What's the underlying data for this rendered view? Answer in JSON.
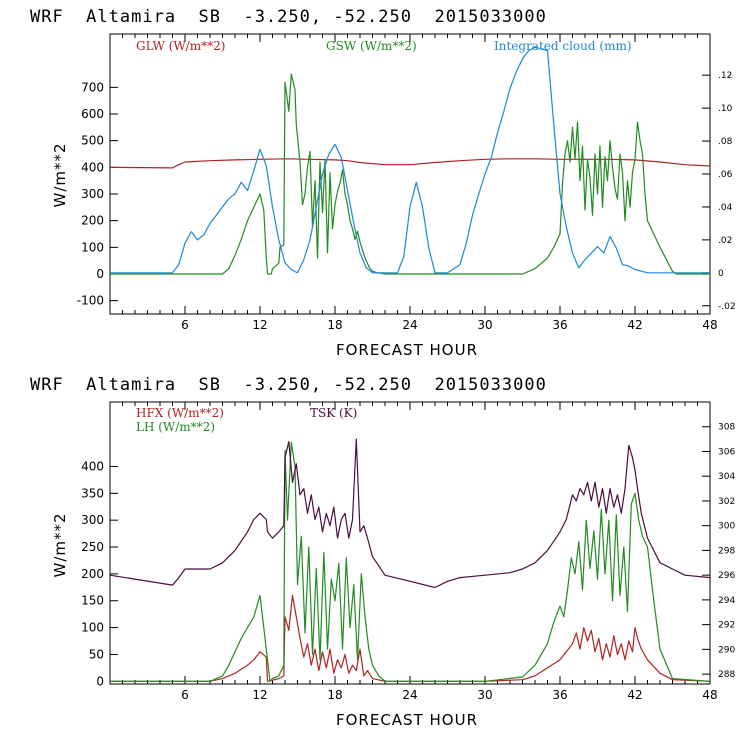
{
  "chart_data": [
    {
      "type": "line",
      "title": "WRF  Altamira  SB  -3.250, -52.250  2015033000",
      "xlabel": "FORECAST HOUR",
      "ylabel": "W/m**2",
      "xlim": [
        0,
        48
      ],
      "ylim": [
        -150,
        900
      ],
      "x_ticks": [
        6,
        12,
        18,
        24,
        30,
        36,
        42,
        48
      ],
      "y_ticks": [
        -100,
        0,
        100,
        200,
        300,
        400,
        500,
        600,
        700
      ],
      "y2lim": [
        -0.025,
        0.145
      ],
      "y2_ticks": [
        {
          "value": -0.02,
          "label": "-.02"
        },
        {
          "value": 0,
          "label": "0"
        },
        {
          "value": 0.02,
          "label": ".02"
        },
        {
          "value": 0.04,
          "label": ".04"
        },
        {
          "value": 0.06,
          "label": ".06"
        },
        {
          "value": 0.08,
          "label": ".08"
        },
        {
          "value": 0.1,
          "label": ".10"
        },
        {
          "value": 0.12,
          "label": ".12"
        }
      ],
      "series": [
        {
          "name": "GLW (W/m**2)",
          "axis": "left",
          "color": "#b22222",
          "x": [
            0,
            5,
            5.5,
            6,
            8,
            10,
            12,
            14,
            16,
            18,
            19,
            20,
            22,
            24,
            26,
            28,
            30,
            32,
            34,
            36,
            38,
            40,
            42,
            44,
            46,
            48
          ],
          "y": [
            400,
            398,
            410,
            420,
            425,
            428,
            430,
            432,
            430,
            428,
            425,
            418,
            410,
            410,
            418,
            425,
            430,
            432,
            432,
            430,
            430,
            430,
            428,
            420,
            410,
            405
          ]
        },
        {
          "name": "GSW (W/m**2)",
          "axis": "left",
          "color": "#228b22",
          "x": [
            0,
            9,
            9.5,
            10,
            10.5,
            11,
            11.5,
            12,
            12.3,
            12.5,
            12.6,
            12.9,
            13,
            13.5,
            13.6,
            13.9,
            14,
            14.3,
            14.5,
            14.8,
            14.9,
            15.2,
            15.4,
            15.6,
            15.8,
            16.0,
            16.2,
            16.4,
            16.6,
            16.8,
            17.0,
            17.2,
            17.4,
            17.6,
            17.8,
            18.0,
            18.2,
            18.4,
            18.6,
            18.8,
            19.0,
            19.2,
            19.4,
            19.6,
            19.8,
            20.0,
            20.2,
            20.4,
            20.8,
            21.0,
            21.4,
            22,
            33,
            34,
            35,
            35.5,
            36,
            36.2,
            36.4,
            36.6,
            36.8,
            37.0,
            37.2,
            37.4,
            37.6,
            37.8,
            38.0,
            38.2,
            38.4,
            38.6,
            38.8,
            39.0,
            39.2,
            39.4,
            39.6,
            39.8,
            40.0,
            40.2,
            40.4,
            40.6,
            40.8,
            41.0,
            41.2,
            41.4,
            41.6,
            41.8,
            42.0,
            42.2,
            42.4,
            42.6,
            42.8,
            43.0,
            44.0,
            45.0,
            45.3,
            48
          ],
          "y": [
            0,
            0,
            20,
            70,
            130,
            200,
            250,
            300,
            240,
            60,
            0,
            0,
            20,
            40,
            100,
            110,
            720,
            610,
            750,
            690,
            560,
            420,
            260,
            300,
            400,
            460,
            180,
            350,
            60,
            420,
            230,
            430,
            80,
            380,
            170,
            260,
            310,
            340,
            390,
            300,
            260,
            200,
            170,
            130,
            160,
            120,
            90,
            60,
            20,
            10,
            5,
            0,
            0,
            20,
            60,
            100,
            150,
            340,
            450,
            500,
            420,
            550,
            430,
            570,
            350,
            480,
            240,
            430,
            360,
            220,
            450,
            300,
            480,
            250,
            440,
            350,
            500,
            400,
            320,
            280,
            450,
            380,
            200,
            350,
            250,
            380,
            430,
            570,
            500,
            450,
            300,
            200,
            100,
            10,
            0,
            0
          ]
        },
        {
          "name": "Integrated cloud (mm)",
          "axis": "right",
          "color": "#1e88d8",
          "x": [
            0,
            5,
            5.5,
            6,
            6.5,
            7,
            7.5,
            8,
            8.5,
            9,
            9.5,
            10,
            10.5,
            11,
            11.5,
            12,
            12.5,
            13,
            13.5,
            14,
            14.5,
            15,
            15.5,
            16,
            16.5,
            17,
            17.5,
            18,
            18.5,
            19,
            19.5,
            20,
            20.5,
            21,
            21.5,
            22,
            23,
            23.5,
            24,
            24.5,
            25,
            25.5,
            26,
            27,
            28,
            28.5,
            29,
            29.5,
            30,
            30.5,
            31,
            31.5,
            32,
            32.5,
            33,
            33.5,
            34,
            34.5,
            35,
            35.5,
            36,
            36.5,
            37,
            37.5,
            38,
            38.5,
            39,
            39.5,
            40,
            40.5,
            41,
            41.5,
            42,
            43,
            48
          ],
          "y": [
            0,
            0,
            0.005,
            0.018,
            0.025,
            0.02,
            0.023,
            0.03,
            0.035,
            0.04,
            0.045,
            0.048,
            0.055,
            0.05,
            0.062,
            0.075,
            0.065,
            0.04,
            0.02,
            0.006,
            0.002,
            0.0,
            0.008,
            0.02,
            0.04,
            0.06,
            0.072,
            0.078,
            0.07,
            0.05,
            0.03,
            0.012,
            0.003,
            0,
            0,
            0,
            0,
            0.01,
            0.04,
            0.055,
            0.04,
            0.015,
            0,
            0,
            0.005,
            0.018,
            0.035,
            0.048,
            0.06,
            0.07,
            0.085,
            0.098,
            0.112,
            0.122,
            0.13,
            0.135,
            0.137,
            0.136,
            0.135,
            0.09,
            0.048,
            0.028,
            0.012,
            0.003,
            0.008,
            0.012,
            0.016,
            0.012,
            0.022,
            0.015,
            0.005,
            0.004,
            0.002,
            0,
            0
          ]
        }
      ]
    },
    {
      "type": "line",
      "title": "WRF  Altamira  SB  -3.250, -52.250  2015033000",
      "xlabel": "FORECAST HOUR",
      "ylabel": "W/m**2",
      "xlim": [
        0,
        48
      ],
      "ylim": [
        -5,
        520
      ],
      "x_ticks": [
        6,
        12,
        18,
        24,
        30,
        36,
        42,
        48
      ],
      "y_ticks": [
        0,
        50,
        100,
        150,
        200,
        250,
        300,
        350,
        400
      ],
      "y2lim": [
        287.2,
        310
      ],
      "y2_ticks": [
        288,
        290,
        292,
        294,
        296,
        298,
        300,
        302,
        304,
        306,
        308
      ],
      "series": [
        {
          "name": "HFX (W/m**2)",
          "axis": "left",
          "color": "#b22222",
          "x": [
            0,
            8,
            9,
            10,
            11,
            11.5,
            12,
            12.5,
            12.6,
            13,
            13.5,
            13.9,
            14,
            14.3,
            14.6,
            14.9,
            15.2,
            15.5,
            15.8,
            16.1,
            16.4,
            16.7,
            17.0,
            17.3,
            17.6,
            17.9,
            18.2,
            18.5,
            18.8,
            19.1,
            19.4,
            19.7,
            20.0,
            20.3,
            20.6,
            21,
            22,
            30,
            33,
            34,
            35,
            36,
            36.5,
            37,
            37.3,
            37.6,
            37.9,
            38.2,
            38.5,
            38.8,
            39.1,
            39.4,
            39.7,
            40.0,
            40.3,
            40.6,
            40.9,
            41.2,
            41.5,
            41.8,
            42.0,
            42.2,
            42.5,
            43,
            44,
            45,
            48
          ],
          "y": [
            0,
            0,
            5,
            15,
            30,
            40,
            55,
            45,
            0,
            2,
            5,
            10,
            120,
            95,
            160,
            120,
            80,
            45,
            70,
            30,
            60,
            20,
            55,
            25,
            60,
            15,
            40,
            25,
            50,
            15,
            30,
            20,
            60,
            10,
            20,
            5,
            0,
            0,
            3,
            10,
            25,
            40,
            55,
            70,
            90,
            60,
            100,
            75,
            95,
            55,
            80,
            40,
            70,
            45,
            85,
            50,
            70,
            40,
            75,
            55,
            100,
            80,
            60,
            40,
            15,
            3,
            0
          ]
        },
        {
          "name": "LH (W/m**2)",
          "axis": "left",
          "color": "#228b22",
          "x": [
            0,
            8,
            9,
            9.5,
            10,
            10.5,
            11,
            11.5,
            12,
            12.3,
            12.6,
            12.8,
            13,
            13.5,
            13.9,
            14,
            14.2,
            14.5,
            14.8,
            15.0,
            15.3,
            15.6,
            15.9,
            16.2,
            16.5,
            16.8,
            17.1,
            17.4,
            17.7,
            18.0,
            18.3,
            18.6,
            18.9,
            19.2,
            19.5,
            19.8,
            20.1,
            20.4,
            20.7,
            21,
            21.5,
            22,
            30,
            33,
            34,
            35,
            35.5,
            36,
            36.3,
            36.6,
            36.9,
            37.2,
            37.5,
            37.8,
            38.1,
            38.4,
            38.7,
            39.0,
            39.3,
            39.6,
            39.9,
            40.2,
            40.5,
            40.8,
            41.1,
            41.4,
            41.7,
            42.0,
            42.3,
            42.6,
            43,
            43.5,
            44,
            45,
            48
          ],
          "y": [
            0,
            0,
            10,
            30,
            55,
            80,
            100,
            120,
            160,
            100,
            40,
            0,
            5,
            10,
            30,
            430,
            300,
            445,
            400,
            180,
            270,
            90,
            250,
            50,
            210,
            40,
            240,
            60,
            190,
            150,
            220,
            60,
            230,
            100,
            180,
            40,
            200,
            120,
            60,
            30,
            10,
            0,
            0,
            8,
            30,
            70,
            110,
            140,
            120,
            170,
            230,
            200,
            260,
            170,
            300,
            210,
            280,
            190,
            320,
            200,
            300,
            150,
            310,
            160,
            250,
            130,
            330,
            350,
            300,
            270,
            250,
            150,
            60,
            5,
            0
          ]
        },
        {
          "name": "TSK (K)",
          "axis": "right",
          "color": "#4b0d3e",
          "x": [
            0,
            5,
            5.5,
            6,
            8,
            9,
            10,
            11,
            11.5,
            12,
            12.5,
            12.6,
            13,
            13.5,
            13.9,
            14,
            14.3,
            14.6,
            14.9,
            15.2,
            15.5,
            15.8,
            16.1,
            16.4,
            16.7,
            17.0,
            17.3,
            17.6,
            17.9,
            18.2,
            18.5,
            18.8,
            19.1,
            19.4,
            19.7,
            20.0,
            20.3,
            20.6,
            21,
            22,
            24,
            26,
            27,
            28,
            30,
            32,
            33,
            34,
            35,
            36,
            36.5,
            37,
            37.3,
            37.6,
            37.9,
            38.2,
            38.5,
            38.8,
            39.1,
            39.4,
            39.7,
            40.0,
            40.3,
            40.6,
            40.9,
            41.2,
            41.5,
            41.8,
            42.0,
            42.2,
            42.5,
            43,
            44,
            45,
            46,
            48
          ],
          "y": [
            296.0,
            295.2,
            295.8,
            296.5,
            296.5,
            297.0,
            298.0,
            299.5,
            300.5,
            301.0,
            300.5,
            299.5,
            299.0,
            299.5,
            300.0,
            305.5,
            306.8,
            303.5,
            305.0,
            302.5,
            303.0,
            301.0,
            302.5,
            300.5,
            301.5,
            299.5,
            301.0,
            300.0,
            301.5,
            299.0,
            300.5,
            301.0,
            299.0,
            300.5,
            307.0,
            299.5,
            300.0,
            299.0,
            297.5,
            296.0,
            295.5,
            295.0,
            295.5,
            295.8,
            296.0,
            296.2,
            296.5,
            297.0,
            298.0,
            299.5,
            300.5,
            302.5,
            302.0,
            303.0,
            302.5,
            303.5,
            302.0,
            303.5,
            301.5,
            303.0,
            301.0,
            303.0,
            301.5,
            302.5,
            301.0,
            303.0,
            306.5,
            305.5,
            304.5,
            303.0,
            301.0,
            299.0,
            297.0,
            296.5,
            296.0,
            295.8
          ]
        }
      ]
    }
  ]
}
